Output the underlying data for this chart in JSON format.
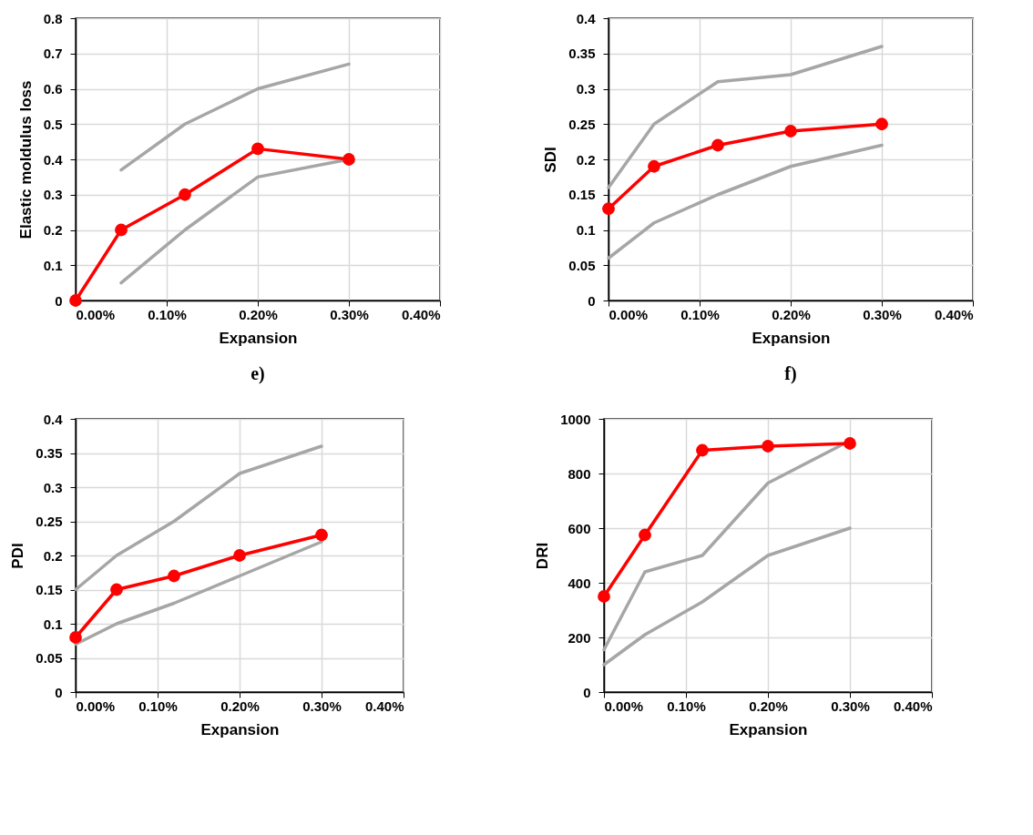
{
  "chart_data": [
    {
      "type": "line",
      "xlabel": "Expansion",
      "ylabel": "Elastic moldulus loss",
      "annotations": [
        "e)"
      ],
      "grid": true,
      "legend": false,
      "x": [
        0,
        0.05,
        0.12,
        0.2,
        0.3
      ],
      "xlim": [
        0,
        0.4
      ],
      "xticks": [
        {
          "value": 0,
          "label": "0.00%"
        },
        {
          "value": 0.1,
          "label": "0.10%"
        },
        {
          "value": 0.2,
          "label": "0.20%"
        },
        {
          "value": 0.3,
          "label": "0.30%"
        },
        {
          "value": 0.4,
          "label": "0.40%"
        }
      ],
      "ylim": [
        0,
        0.8
      ],
      "yticks": [
        0,
        0.1,
        0.2,
        0.3,
        0.4,
        0.5,
        0.6,
        0.7,
        0.8
      ],
      "series": [
        {
          "color": "#a6a6a6",
          "marker": "none",
          "x": [
            0.05,
            0.12,
            0.2,
            0.3
          ],
          "values": [
            0.37,
            0.5,
            0.6,
            0.67
          ]
        },
        {
          "color": "#a6a6a6",
          "marker": "none",
          "x": [
            0.05,
            0.12,
            0.2,
            0.3
          ],
          "values": [
            0.05,
            0.2,
            0.35,
            0.4
          ]
        },
        {
          "color": "#ff0000",
          "marker": "circle",
          "values": [
            0,
            0.2,
            0.3,
            0.43,
            0.4
          ]
        }
      ]
    },
    {
      "type": "line",
      "xlabel": "Expansion",
      "ylabel": "SDI",
      "annotations": [
        "f)"
      ],
      "grid": true,
      "legend": false,
      "x": [
        0,
        0.05,
        0.12,
        0.2,
        0.3
      ],
      "xlim": [
        0,
        0.4
      ],
      "xticks": [
        {
          "value": 0,
          "label": "0.00%"
        },
        {
          "value": 0.1,
          "label": "0.10%"
        },
        {
          "value": 0.2,
          "label": "0.20%"
        },
        {
          "value": 0.3,
          "label": "0.30%"
        },
        {
          "value": 0.4,
          "label": "0.40%"
        }
      ],
      "ylim": [
        0,
        0.4
      ],
      "yticks": [
        0,
        0.05,
        0.1,
        0.15,
        0.2,
        0.25,
        0.3,
        0.35,
        0.4
      ],
      "series": [
        {
          "color": "#a6a6a6",
          "marker": "none",
          "values": [
            0.16,
            0.25,
            0.31,
            0.32,
            0.36
          ]
        },
        {
          "color": "#a6a6a6",
          "marker": "none",
          "values": [
            0.06,
            0.11,
            0.15,
            0.19,
            0.22
          ]
        },
        {
          "color": "#ff0000",
          "marker": "circle",
          "values": [
            0.13,
            0.19,
            0.22,
            0.24,
            0.25
          ]
        }
      ]
    },
    {
      "type": "line",
      "xlabel": "Expansion",
      "ylabel": "PDI",
      "grid": true,
      "legend": false,
      "x": [
        0,
        0.05,
        0.12,
        0.2,
        0.3
      ],
      "xlim": [
        0,
        0.4
      ],
      "xticks": [
        {
          "value": 0,
          "label": "0.00%"
        },
        {
          "value": 0.1,
          "label": "0.10%"
        },
        {
          "value": 0.2,
          "label": "0.20%"
        },
        {
          "value": 0.3,
          "label": "0.30%"
        },
        {
          "value": 0.4,
          "label": "0.40%"
        }
      ],
      "ylim": [
        0,
        0.4
      ],
      "yticks": [
        0,
        0.05,
        0.1,
        0.15,
        0.2,
        0.25,
        0.3,
        0.35,
        0.4
      ],
      "series": [
        {
          "color": "#a6a6a6",
          "marker": "none",
          "values": [
            0.15,
            0.2,
            0.25,
            0.32,
            0.36
          ]
        },
        {
          "color": "#a6a6a6",
          "marker": "none",
          "values": [
            0.07,
            0.1,
            0.13,
            0.17,
            0.22
          ]
        },
        {
          "color": "#ff0000",
          "marker": "circle",
          "values": [
            0.08,
            0.15,
            0.17,
            0.2,
            0.23
          ]
        }
      ]
    },
    {
      "type": "line",
      "xlabel": "Expansion",
      "ylabel": "DRI",
      "grid": true,
      "legend": false,
      "x": [
        0,
        0.05,
        0.12,
        0.2,
        0.3
      ],
      "xlim": [
        0,
        0.4
      ],
      "xticks": [
        {
          "value": 0,
          "label": "0.00%"
        },
        {
          "value": 0.1,
          "label": "0.10%"
        },
        {
          "value": 0.2,
          "label": "0.20%"
        },
        {
          "value": 0.3,
          "label": "0.30%"
        },
        {
          "value": 0.4,
          "label": "0.40%"
        }
      ],
      "ylim": [
        0,
        1000
      ],
      "yticks": [
        0,
        200,
        400,
        600,
        800,
        1000
      ],
      "series": [
        {
          "color": "#a6a6a6",
          "marker": "none",
          "values": [
            155,
            440,
            500,
            765,
            920
          ]
        },
        {
          "color": "#a6a6a6",
          "marker": "none",
          "values": [
            100,
            210,
            330,
            500,
            600
          ]
        },
        {
          "color": "#ff0000",
          "marker": "circle",
          "values": [
            350,
            575,
            885,
            900,
            910
          ]
        }
      ]
    }
  ]
}
